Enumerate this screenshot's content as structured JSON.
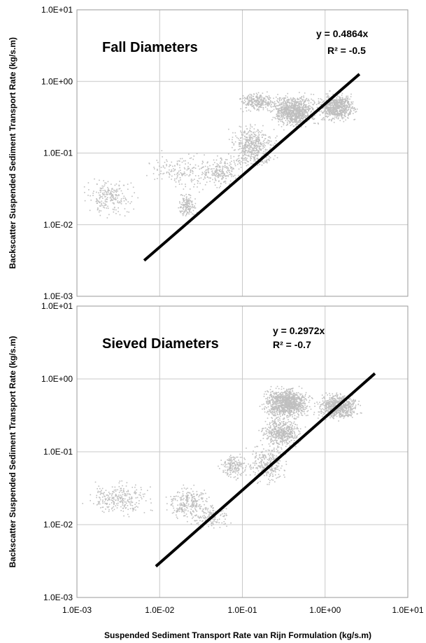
{
  "chart_data": [
    {
      "type": "scatter",
      "scale": "log-log",
      "title": "Fall Diameters",
      "xlim": [
        0.001,
        10
      ],
      "ylim": [
        0.001,
        10
      ],
      "y_tick_labels": [
        "1.0E-03",
        "1.0E-02",
        "1.0E-01",
        "1.0E+00",
        "1.0E+01"
      ],
      "x_tick_labels": [],
      "ylabel": "Backscatter Suspended Sediment Transport Rate (kg/s.m)",
      "grid": true,
      "trendline": {
        "equation": "y = 0.4864x",
        "r2_label": "R² = -0.5",
        "slope": 0.4864,
        "x_start": 0.0065,
        "x_end": 2.6
      },
      "point_clusters": [
        {
          "x_range": [
            0.001,
            0.006
          ],
          "y_range": [
            0.012,
            0.05
          ],
          "count": 220
        },
        {
          "x_range": [
            0.006,
            0.06
          ],
          "y_range": [
            0.025,
            0.12
          ],
          "count": 180
        },
        {
          "x_range": [
            0.015,
            0.03
          ],
          "y_range": [
            0.011,
            0.03
          ],
          "count": 140
        },
        {
          "x_range": [
            0.03,
            0.1
          ],
          "y_range": [
            0.03,
            0.1
          ],
          "count": 200
        },
        {
          "x_range": [
            0.06,
            0.3
          ],
          "y_range": [
            0.05,
            0.3
          ],
          "count": 500
        },
        {
          "x_range": [
            0.08,
            0.3
          ],
          "y_range": [
            0.35,
            0.75
          ],
          "count": 260
        },
        {
          "x_range": [
            0.2,
            0.9
          ],
          "y_range": [
            0.2,
            0.75
          ],
          "count": 900
        },
        {
          "x_range": [
            0.7,
            2.8
          ],
          "y_range": [
            0.25,
            0.75
          ],
          "count": 700
        }
      ]
    },
    {
      "type": "scatter",
      "scale": "log-log",
      "title": "Sieved Diameters",
      "xlim": [
        0.001,
        10
      ],
      "ylim": [
        0.001,
        10
      ],
      "y_tick_labels": [
        "1.0E-03",
        "1.0E-02",
        "1.0E-01",
        "1.0E+00",
        "1.0E+01"
      ],
      "x_tick_labels": [
        "1.0E-03",
        "1.0E-02",
        "1.0E-01",
        "1.0E+00",
        "1.0E+01"
      ],
      "ylabel": "Backscatter Suspended Sediment Transport Rate (kg/s.m)",
      "xlabel": "Suspended Sediment Transport Rate van Rijn Formulation (kg/s.m)",
      "grid": true,
      "trendline": {
        "equation": "y = 0.2972x",
        "r2_label": "R² = -0.7",
        "slope": 0.2972,
        "x_start": 0.009,
        "x_end": 4.0
      },
      "point_clusters": [
        {
          "x_range": [
            0.001,
            0.01
          ],
          "y_range": [
            0.012,
            0.045
          ],
          "count": 260
        },
        {
          "x_range": [
            0.01,
            0.05
          ],
          "y_range": [
            0.01,
            0.04
          ],
          "count": 260
        },
        {
          "x_range": [
            0.02,
            0.09
          ],
          "y_range": [
            0.008,
            0.02
          ],
          "count": 140
        },
        {
          "x_range": [
            0.05,
            0.12
          ],
          "y_range": [
            0.04,
            0.1
          ],
          "count": 180
        },
        {
          "x_range": [
            0.1,
            0.4
          ],
          "y_range": [
            0.03,
            0.15
          ],
          "count": 300
        },
        {
          "x_range": [
            0.15,
            0.6
          ],
          "y_range": [
            0.1,
            0.35
          ],
          "count": 500
        },
        {
          "x_range": [
            0.15,
            0.8
          ],
          "y_range": [
            0.25,
            0.85
          ],
          "count": 1000
        },
        {
          "x_range": [
            0.7,
            3.0
          ],
          "y_range": [
            0.25,
            0.7
          ],
          "count": 700
        }
      ]
    }
  ]
}
